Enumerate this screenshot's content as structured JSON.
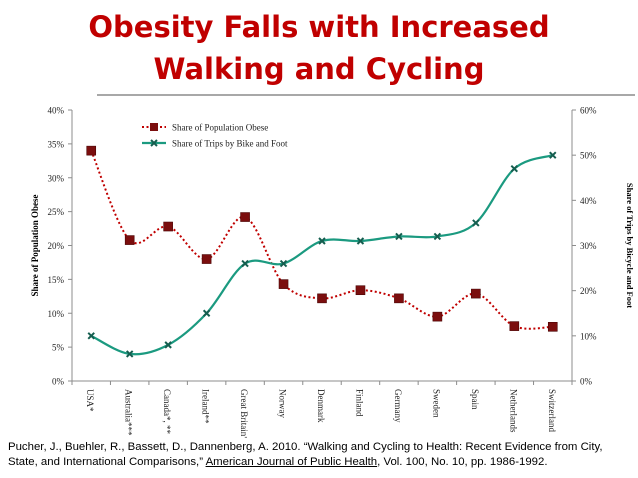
{
  "page_title": {
    "line1": "Obesity Falls with Increased",
    "line2": "Walking and Cycling"
  },
  "chart_data": {
    "type": "line",
    "categories": [
      "USA*",
      "Australia***",
      "Canada*, **",
      "Ireland**",
      "Great Britain*",
      "Norway",
      "Denmark",
      "Finland",
      "Germany",
      "Sweden",
      "Spain",
      "Netherlands",
      "Switzerland"
    ],
    "series": [
      {
        "name": "Share of Population Obese",
        "axis": "left",
        "color": "#c00000",
        "marker_color": "#7b0e0e",
        "style": "dotted",
        "values": [
          34.0,
          20.8,
          22.8,
          18.0,
          24.2,
          14.3,
          12.2,
          13.4,
          12.2,
          9.5,
          12.9,
          8.1,
          8.0
        ]
      },
      {
        "name": "Share of Trips by Bike and Foot",
        "axis": "right",
        "color": "#1b9a80",
        "marker_color": "#155e4f",
        "style": "solid",
        "values": [
          10.0,
          6.0,
          8.0,
          15.0,
          26.0,
          26.0,
          31.0,
          31.0,
          32.0,
          32.0,
          35.0,
          47.0,
          50.0
        ]
      }
    ],
    "ylabel": "Share of Population Obese",
    "y2label": "Share of Trips by Bicycle and Foot",
    "ylim": [
      0,
      40
    ],
    "y2lim": [
      0,
      60
    ],
    "yticks": [
      "0%",
      "5%",
      "10%",
      "15%",
      "20%",
      "25%",
      "30%",
      "35%",
      "40%"
    ],
    "y2ticks": [
      "0%",
      "10%",
      "20%",
      "30%",
      "40%",
      "50%",
      "60%"
    ],
    "legend_position": "top-center",
    "grid": false
  },
  "citation": {
    "text_before": "Pucher, J., Buehler, R., Bassett, D., Dannenberg, A. 2010. “Walking and Cycling to Health: Recent Evidence from City, State, and International Comparisons,” ",
    "journal": "American Journal of Public Health",
    "text_after": ", Vol. 100, No. 10, pp. 1986-1992."
  }
}
